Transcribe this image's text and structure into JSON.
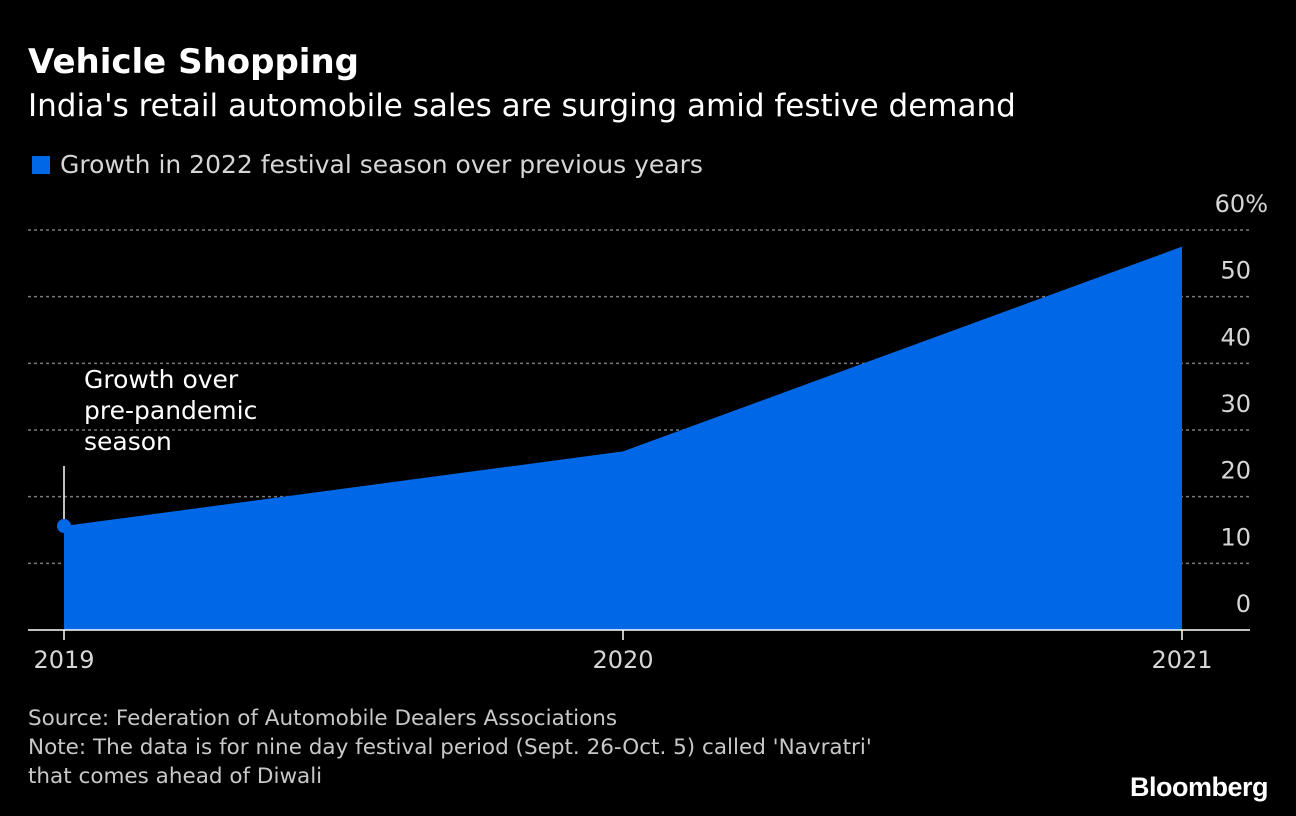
{
  "header": {
    "title": "Vehicle Shopping",
    "subtitle": "India's retail automobile sales are surging amid festive demand"
  },
  "legend": {
    "label": "Growth in 2022 festival season over previous years"
  },
  "colors": {
    "background": "#000000",
    "area": "#0068e6",
    "grid": "#7a7a7a",
    "axis": "#ffffff",
    "text": "#d6d6d6"
  },
  "chart_data": {
    "type": "area",
    "title": "Vehicle Shopping",
    "subtitle": "India's retail automobile sales are surging amid festive demand",
    "xlabel": "",
    "ylabel": "",
    "x": [
      "2019",
      "2020",
      "2021"
    ],
    "series": [
      {
        "name": "Growth in 2022 festival season over previous years",
        "values": [
          15.6,
          26.8,
          57.5
        ]
      }
    ],
    "ylim": [
      0,
      60
    ],
    "yticks": [
      0,
      10,
      20,
      30,
      40,
      50,
      60
    ],
    "ytick_labels": [
      "0",
      "10",
      "20",
      "30",
      "40",
      "50",
      "60%"
    ],
    "grid": true,
    "legend_position": "top-left",
    "annotations": [
      {
        "x": "2019",
        "text_lines": [
          "Growth over",
          "pre-pandemic",
          "season"
        ]
      }
    ]
  },
  "footer": {
    "source": "Source: Federation of Automobile Dealers Associations",
    "note_line1": "Note: The data is for nine day festival period (Sept. 26-Oct. 5) called 'Navratri'",
    "note_line2": "that comes ahead of Diwali"
  },
  "brand": "Bloomberg"
}
